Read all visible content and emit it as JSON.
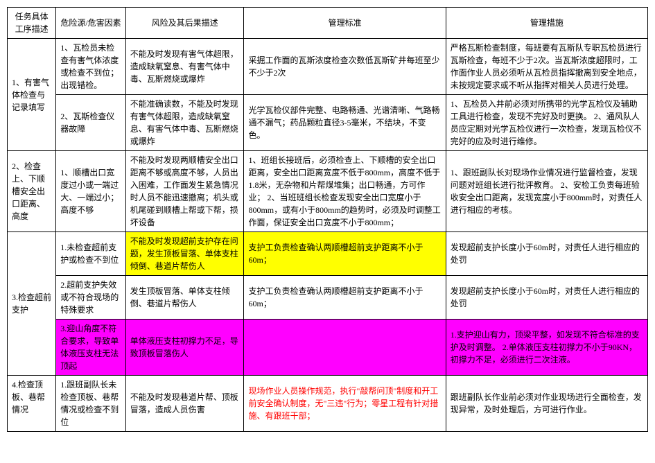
{
  "table": {
    "headers": {
      "col1": "任务具体工序描述",
      "col2": "危险源/危害因素",
      "col3": "风险及其后果描述",
      "col4": "管理标准",
      "col5": "管理措施"
    },
    "rows": {
      "r1": {
        "task": "1、有害气体检查与记录填写",
        "hazard1": "1、瓦检员未检查有害气体浓度或检查不到位；出现错检。",
        "risk1": "不能及时发现有害气体超限，造成缺氧窒息、有害气体中毒、瓦斯燃烧或爆炸",
        "standard1": "采掘工作面的瓦斯浓度检查次数低瓦斯矿井每班至少不少于2次",
        "measure1": "严格瓦斯检查制度，每班要有瓦斯队专职瓦检员进行瓦斯检查，每班不少于2次。当瓦斯浓度超限时，工作面作业人员必须听从瓦检员指挥撤离到安全地点，未按规定要求或不听从指挥对相关人员进行处理。",
        "hazard2": "2、瓦斯检查仪器故障",
        "risk2": "不能准确读数，不能及时发现有害气体超限，造成缺氧窒息、有害气体中毒、瓦斯燃烧或爆炸",
        "standard2": "光学瓦检仪部件完整、电路畅通、光谱清晰、气路畅通不漏气；药品颗粒直径3-5毫米，不结块，不变色。",
        "measure2": "1、瓦检员入井前必须对所携带的光学瓦检仪及辅助工具进行检查，发现不完好及时更换。\n2、通风队人员应定期对光学瓦检仪进行一次检查，发现瓦检仪不完好的应及时进行维修。"
      },
      "r2": {
        "task": "2、检查上、下顺槽安全出口距离、高度",
        "hazard": "1、顺槽出口宽度过小或一端过大、一端过小；高度不够",
        "risk": "不能及时发现两顺槽安全出口距离不够或高度不够，人员出入困难，工作面发生紧急情况时人员不能迅速撤离；机头或机尾碰到顺槽上帮或下帮，损坏设备",
        "standard": "1、班组长接班后，必须检查上、下顺槽的安全出口距离，安全出口距离宽度不低于800mm，高度不低于1.8米，无杂物和片帮煤堆集；出口畅通，方可作业；\n2、当班班组长检查发现安全出口宽度小于800mm，或有小于800mm的趋势时，必须及时调整工作面，保证安全出口宽度不小于800mm；",
        "measure": "1、跟班副队长对现场作业情况进行监督检查，发现问题对班组长进行批评教育。\n2、安检工负责每班验收安全出口距离，发现宽度小于800mm时，对责任人进行相应的考核。"
      },
      "r3": {
        "task": "3.检查超前支护",
        "hazard1": "1.未检查超前支护或检查不到位",
        "risk1": "不能及时发现超前支护存在问题，发生顶板冒落、单体支柱倾倒、巷道片帮伤人",
        "standard1": "支护工负责检查确认两顺槽超前支护距离不小于60m；",
        "measure1": "发现超前支护长度小于60m时，对责任人进行相应的处罚",
        "hazard2": "2.超前支护失效或不符合现场的特殊要求",
        "risk2": "发生顶板冒落、单体支柱倾倒、巷道片帮伤人",
        "standard2": "支护工负责检查确认两顺槽超前支护距离不小于60m；",
        "measure2": "发现超前支护长度小于60m时，对责任人进行相应的处罚",
        "hazard3": "3.迎山角度不符合要求，导致单体液压支柱无法顶起",
        "risk3": "单体液压支柱初撑力不足，导致顶板冒落伤人",
        "standard3": "",
        "measure3": "1.支护迎山有力，顶梁平整，如发现不符合标准的支护及时调整。\n2.单体液压支柱初撑力不小于90KN，初撑力不足，必须进行二次注液。"
      },
      "r4": {
        "task": "4.检查顶板、巷帮情况",
        "hazard": "1.跟班副队长未检查顶板、巷帮情况或检查不到位",
        "risk": "不能及时发现巷道片帮、顶板冒落，造成人员伤害",
        "standard": "现场作业人员操作规范，执行\"敲帮问顶\"制度和开工前安全确认制度，无\"三违\"行为；零星工程有针对措施、有跟班干部；",
        "measure": "跟班副队长作业前必须对作业现场进行全面检查，发现异常，及时处理后，方可进行作业。"
      }
    },
    "colors": {
      "yellow_highlight": "#ffff00",
      "magenta_highlight": "#ff00ff",
      "red_text": "#ff0000",
      "border": "#000000",
      "background": "#ffffff"
    }
  }
}
